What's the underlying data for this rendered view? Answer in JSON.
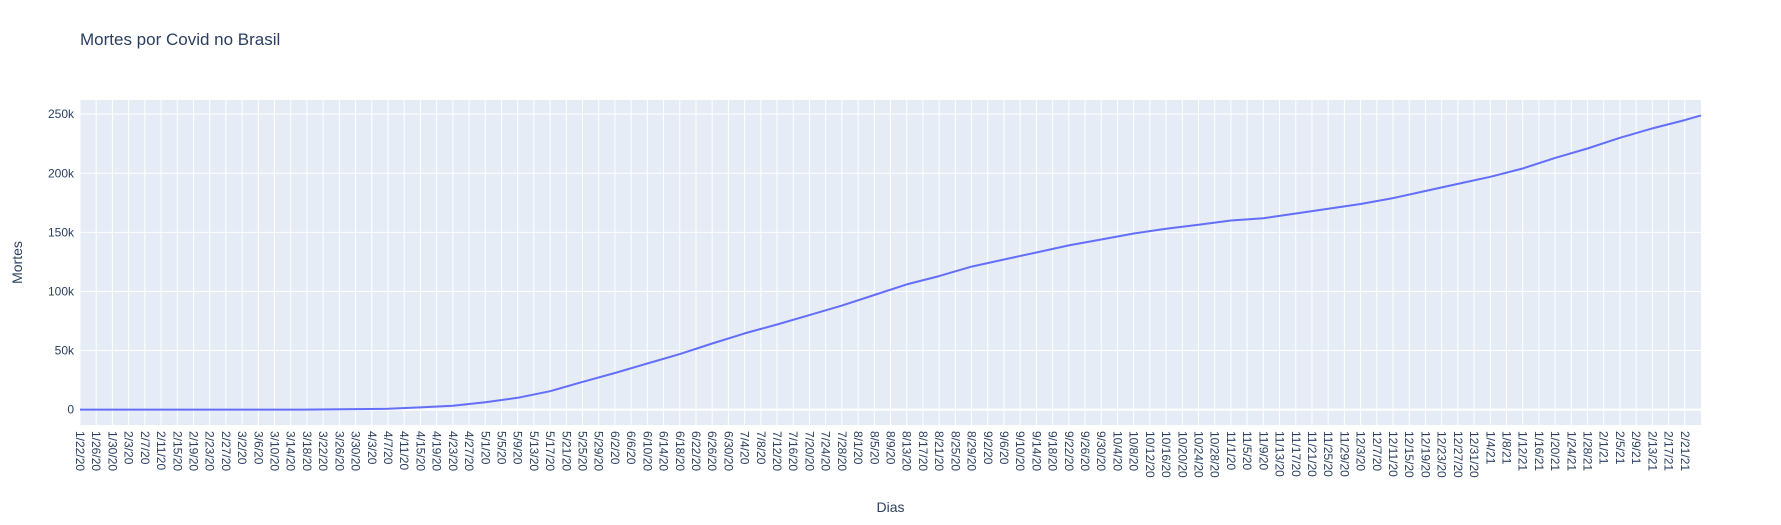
{
  "chart_data": {
    "type": "line",
    "title": "Mortes por Covid no Brasil",
    "xlabel": "Dias",
    "ylabel": "Mortes",
    "x_range": [
      "2020-01-22",
      "2021-02-25"
    ],
    "ylim": [
      -13000,
      262000
    ],
    "grid": true,
    "legend": "none",
    "colors": {
      "plot_bg": "#e5ecf6",
      "grid": "#ffffff",
      "line": "#636efa",
      "text": "#2a3f5f"
    },
    "y_ticks": [
      {
        "value": 0,
        "label": "0"
      },
      {
        "value": 50000,
        "label": "50k"
      },
      {
        "value": 100000,
        "label": "100k"
      },
      {
        "value": 150000,
        "label": "150k"
      },
      {
        "value": 200000,
        "label": "200k"
      },
      {
        "value": 250000,
        "label": "250k"
      }
    ],
    "x_tick_labels": [
      "1/22/20",
      "1/26/20",
      "1/30/20",
      "2/3/20",
      "2/7/20",
      "2/11/20",
      "2/15/20",
      "2/19/20",
      "2/23/20",
      "2/27/20",
      "3/2/20",
      "3/6/20",
      "3/10/20",
      "3/14/20",
      "3/18/20",
      "3/22/20",
      "3/26/20",
      "3/30/20",
      "4/3/20",
      "4/7/20",
      "4/11/20",
      "4/15/20",
      "4/19/20",
      "4/23/20",
      "4/27/20",
      "5/1/20",
      "5/5/20",
      "5/9/20",
      "5/13/20",
      "5/17/20",
      "5/21/20",
      "5/25/20",
      "5/29/20",
      "6/2/20",
      "6/6/20",
      "6/10/20",
      "6/14/20",
      "6/18/20",
      "6/22/20",
      "6/26/20",
      "6/30/20",
      "7/4/20",
      "7/8/20",
      "7/12/20",
      "7/16/20",
      "7/20/20",
      "7/24/20",
      "7/28/20",
      "8/1/20",
      "8/5/20",
      "8/9/20",
      "8/13/20",
      "8/17/20",
      "8/21/20",
      "8/25/20",
      "8/29/20",
      "9/2/20",
      "9/6/20",
      "9/10/20",
      "9/14/20",
      "9/18/20",
      "9/22/20",
      "9/26/20",
      "9/30/20",
      "10/4/20",
      "10/8/20",
      "10/12/20",
      "10/16/20",
      "10/20/20",
      "10/24/20",
      "10/28/20",
      "11/1/20",
      "11/5/20",
      "11/9/20",
      "11/13/20",
      "11/17/20",
      "11/21/20",
      "11/25/20",
      "11/29/20",
      "12/3/20",
      "12/7/20",
      "12/11/20",
      "12/15/20",
      "12/19/20",
      "12/23/20",
      "12/27/20",
      "12/31/20",
      "1/4/21",
      "1/8/21",
      "1/12/21",
      "1/16/21",
      "1/20/21",
      "1/24/21",
      "1/28/21",
      "2/1/21",
      "2/5/21",
      "2/9/21",
      "2/13/21",
      "2/17/21",
      "2/21/21"
    ],
    "series": [
      {
        "x": [
          "2020-01-22",
          "2020-03-17",
          "2020-04-07",
          "2020-04-15",
          "2020-04-23",
          "2020-05-01",
          "2020-05-09",
          "2020-05-17",
          "2020-05-25",
          "2020-06-02",
          "2020-06-10",
          "2020-06-18",
          "2020-06-26",
          "2020-07-04",
          "2020-07-12",
          "2020-07-20",
          "2020-07-28",
          "2020-08-05",
          "2020-08-13",
          "2020-08-21",
          "2020-08-29",
          "2020-09-06",
          "2020-09-14",
          "2020-09-22",
          "2020-09-30",
          "2020-10-08",
          "2020-10-16",
          "2020-10-24",
          "2020-11-01",
          "2020-11-09",
          "2020-11-17",
          "2020-11-25",
          "2020-12-03",
          "2020-12-11",
          "2020-12-19",
          "2020-12-27",
          "2021-01-04",
          "2021-01-12",
          "2021-01-20",
          "2021-01-28",
          "2021-02-05",
          "2021-02-13",
          "2021-02-21",
          "2021-02-25"
        ],
        "y": [
          0,
          1,
          700,
          1900,
          3300,
          6300,
          10000,
          15600,
          23500,
          31000,
          39000,
          47000,
          56000,
          64500,
          72000,
          80000,
          88000,
          97000,
          106000,
          113000,
          121000,
          127000,
          133000,
          139000,
          144000,
          149000,
          153000,
          156500,
          160000,
          162000,
          166000,
          170000,
          174000,
          179000,
          185000,
          191000,
          197000,
          204000,
          213000,
          221000,
          230000,
          238000,
          245000,
          249000
        ]
      }
    ]
  }
}
